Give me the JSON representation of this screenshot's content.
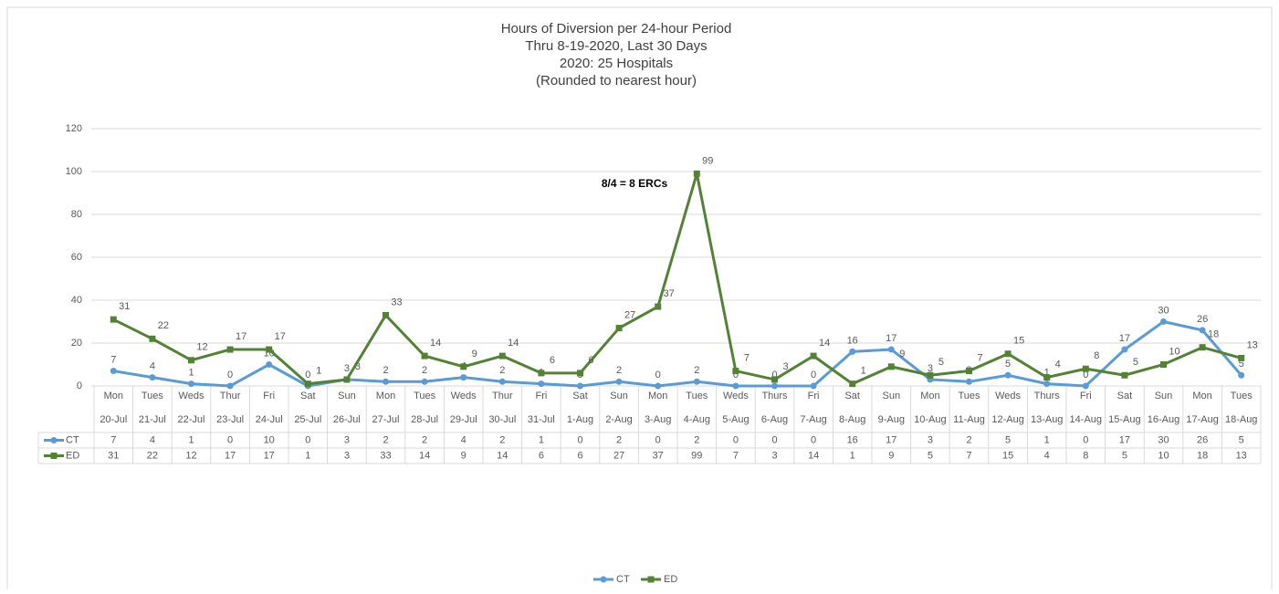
{
  "chart_data": {
    "type": "line",
    "title": [
      "Hours of Diversion per 24-hour Period",
      "Thru 8-19-2020, Last 30 Days",
      "2020:  25 Hospitals",
      "(Rounded to nearest hour)"
    ],
    "weekdays": [
      "Mon",
      "Tues",
      "Weds",
      "Thur",
      "Fri",
      "Sat",
      "Sun",
      "Mon",
      "Tues",
      "Weds",
      "Thur",
      "Fri",
      "Sat",
      "Sun",
      "Mon",
      "Tues",
      "Weds",
      "Thurs",
      "Fri",
      "Sat",
      "Sun",
      "Mon",
      "Tues",
      "Weds",
      "Thurs",
      "Fri",
      "Sat",
      "Sun",
      "Mon",
      "Tues"
    ],
    "categories": [
      "20-Jul",
      "21-Jul",
      "22-Jul",
      "23-Jul",
      "24-Jul",
      "25-Jul",
      "26-Jul",
      "27-Jul",
      "28-Jul",
      "29-Jul",
      "30-Jul",
      "31-Jul",
      "1-Aug",
      "2-Aug",
      "3-Aug",
      "4-Aug",
      "5-Aug",
      "6-Aug",
      "7-Aug",
      "8-Aug",
      "9-Aug",
      "10-Aug",
      "11-Aug",
      "12-Aug",
      "13-Aug",
      "14-Aug",
      "15-Aug",
      "16-Aug",
      "17-Aug",
      "18-Aug"
    ],
    "series": [
      {
        "name": "CT",
        "color": "#5b9bd5",
        "marker": "circle",
        "values": [
          7,
          4,
          1,
          0,
          10,
          0,
          3,
          2,
          2,
          4,
          2,
          1,
          0,
          2,
          0,
          2,
          0,
          0,
          0,
          16,
          17,
          3,
          2,
          5,
          1,
          0,
          17,
          30,
          26,
          5
        ]
      },
      {
        "name": "ED",
        "color": "#548235",
        "marker": "square",
        "values": [
          31,
          22,
          12,
          17,
          17,
          1,
          3,
          33,
          14,
          9,
          14,
          6,
          6,
          27,
          37,
          99,
          7,
          3,
          14,
          1,
          9,
          5,
          7,
          15,
          4,
          8,
          5,
          10,
          18,
          13
        ]
      }
    ],
    "annotation": "8/4 = 8 ERCs",
    "ylim": [
      0,
      120
    ],
    "yticks": [
      0,
      20,
      40,
      60,
      80,
      100,
      120
    ],
    "grid": true,
    "legend": "bottom"
  }
}
